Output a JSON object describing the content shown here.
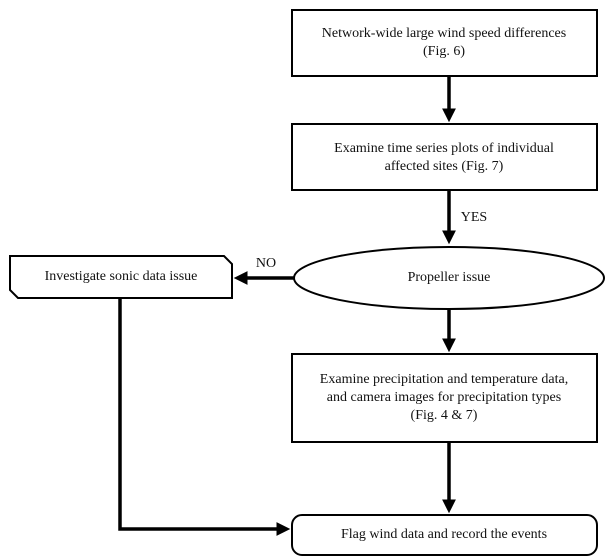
{
  "nodes": [
    {
      "lines": [
        "Network-wide large wind speed differences",
        "(Fig. 6)"
      ]
    },
    {
      "lines": [
        "Examine time series plots of individual",
        "affected sites (Fig. 7)"
      ]
    },
    {
      "lines": [
        "Propeller issue"
      ]
    },
    {
      "lines": [
        "Investigate sonic data issue"
      ]
    },
    {
      "lines": [
        "Examine precipitation and temperature data,",
        "and camera images for precipitation types",
        "(Fig. 4 & 7)"
      ]
    },
    {
      "lines": [
        "Flag wind data and record the events"
      ]
    }
  ],
  "edges": [
    {
      "label": "YES"
    },
    {
      "label": "NO"
    }
  ]
}
